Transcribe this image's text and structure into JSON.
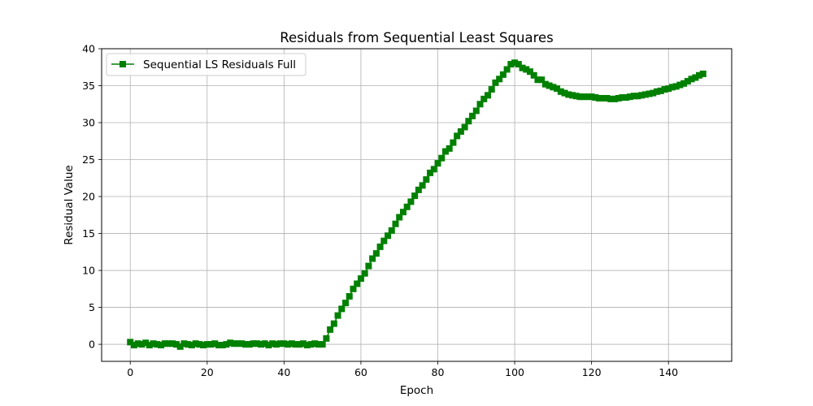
{
  "chart_data": {
    "type": "line",
    "title": "Residuals from Sequential Least Squares",
    "xlabel": "Epoch",
    "ylabel": "Residual Value",
    "xlim": [
      -7.45,
      156.45
    ],
    "ylim": [
      -2.3,
      40
    ],
    "xticks": [
      0,
      20,
      40,
      60,
      80,
      100,
      120,
      140
    ],
    "yticks": [
      0,
      5,
      10,
      15,
      20,
      25,
      30,
      35,
      40
    ],
    "grid": true,
    "legend_position": "upper-left",
    "series": [
      {
        "name": "Sequential LS Residuals Full",
        "color": "#008000",
        "marker": "square",
        "x": [
          0,
          1,
          2,
          3,
          4,
          5,
          6,
          7,
          8,
          9,
          10,
          11,
          12,
          13,
          14,
          15,
          16,
          17,
          18,
          19,
          20,
          21,
          22,
          23,
          24,
          25,
          26,
          27,
          28,
          29,
          30,
          31,
          32,
          33,
          34,
          35,
          36,
          37,
          38,
          39,
          40,
          41,
          42,
          43,
          44,
          45,
          46,
          47,
          48,
          49,
          50,
          51,
          52,
          53,
          54,
          55,
          56,
          57,
          58,
          59,
          60,
          61,
          62,
          63,
          64,
          65,
          66,
          67,
          68,
          69,
          70,
          71,
          72,
          73,
          74,
          75,
          76,
          77,
          78,
          79,
          80,
          81,
          82,
          83,
          84,
          85,
          86,
          87,
          88,
          89,
          90,
          91,
          92,
          93,
          94,
          95,
          96,
          97,
          98,
          99,
          100,
          101,
          102,
          103,
          104,
          105,
          106,
          107,
          108,
          109,
          110,
          111,
          112,
          113,
          114,
          115,
          116,
          117,
          118,
          119,
          120,
          121,
          122,
          123,
          124,
          125,
          126,
          127,
          128,
          129,
          130,
          131,
          132,
          133,
          134,
          135,
          136,
          137,
          138,
          139,
          140,
          141,
          142,
          143,
          144,
          145,
          146,
          147,
          148,
          149
        ],
        "y": [
          0.3,
          -0.1,
          0.1,
          0.0,
          0.2,
          -0.1,
          0.1,
          0.0,
          -0.1,
          0.1,
          0.1,
          0.1,
          0.0,
          -0.3,
          0.1,
          0.0,
          -0.1,
          0.1,
          0.0,
          -0.1,
          0.0,
          0.0,
          0.1,
          -0.1,
          -0.1,
          0.0,
          0.2,
          0.1,
          0.1,
          0.1,
          0.0,
          0.0,
          0.1,
          0.1,
          0.0,
          0.1,
          -0.1,
          0.1,
          0.0,
          0.1,
          0.1,
          0.0,
          0.1,
          0.0,
          0.0,
          0.1,
          -0.1,
          0.0,
          0.1,
          0.0,
          0.0,
          0.8,
          2.0,
          2.8,
          3.9,
          4.8,
          5.6,
          6.5,
          7.5,
          8.2,
          8.9,
          9.6,
          10.6,
          11.6,
          12.3,
          13.2,
          14.0,
          14.7,
          15.4,
          16.3,
          17.2,
          17.9,
          18.6,
          19.3,
          20.1,
          20.9,
          21.5,
          22.3,
          23.2,
          23.7,
          24.5,
          25.2,
          26.1,
          26.5,
          27.3,
          28.2,
          28.8,
          29.4,
          30.2,
          30.9,
          31.6,
          32.5,
          33.2,
          33.7,
          34.5,
          35.4,
          35.9,
          36.5,
          37.2,
          37.9,
          38.1,
          37.9,
          37.4,
          37.2,
          36.9,
          36.4,
          35.8,
          35.8,
          35.2,
          35.0,
          34.8,
          34.6,
          34.2,
          34.0,
          33.8,
          33.7,
          33.6,
          33.5,
          33.5,
          33.5,
          33.5,
          33.4,
          33.3,
          33.3,
          33.3,
          33.2,
          33.2,
          33.3,
          33.4,
          33.4,
          33.5,
          33.6,
          33.6,
          33.7,
          33.8,
          33.9,
          34.0,
          34.2,
          34.3,
          34.5,
          34.6,
          34.8,
          34.9,
          35.1,
          35.3,
          35.6,
          35.9,
          36.1,
          36.4,
          36.6
        ]
      }
    ]
  }
}
